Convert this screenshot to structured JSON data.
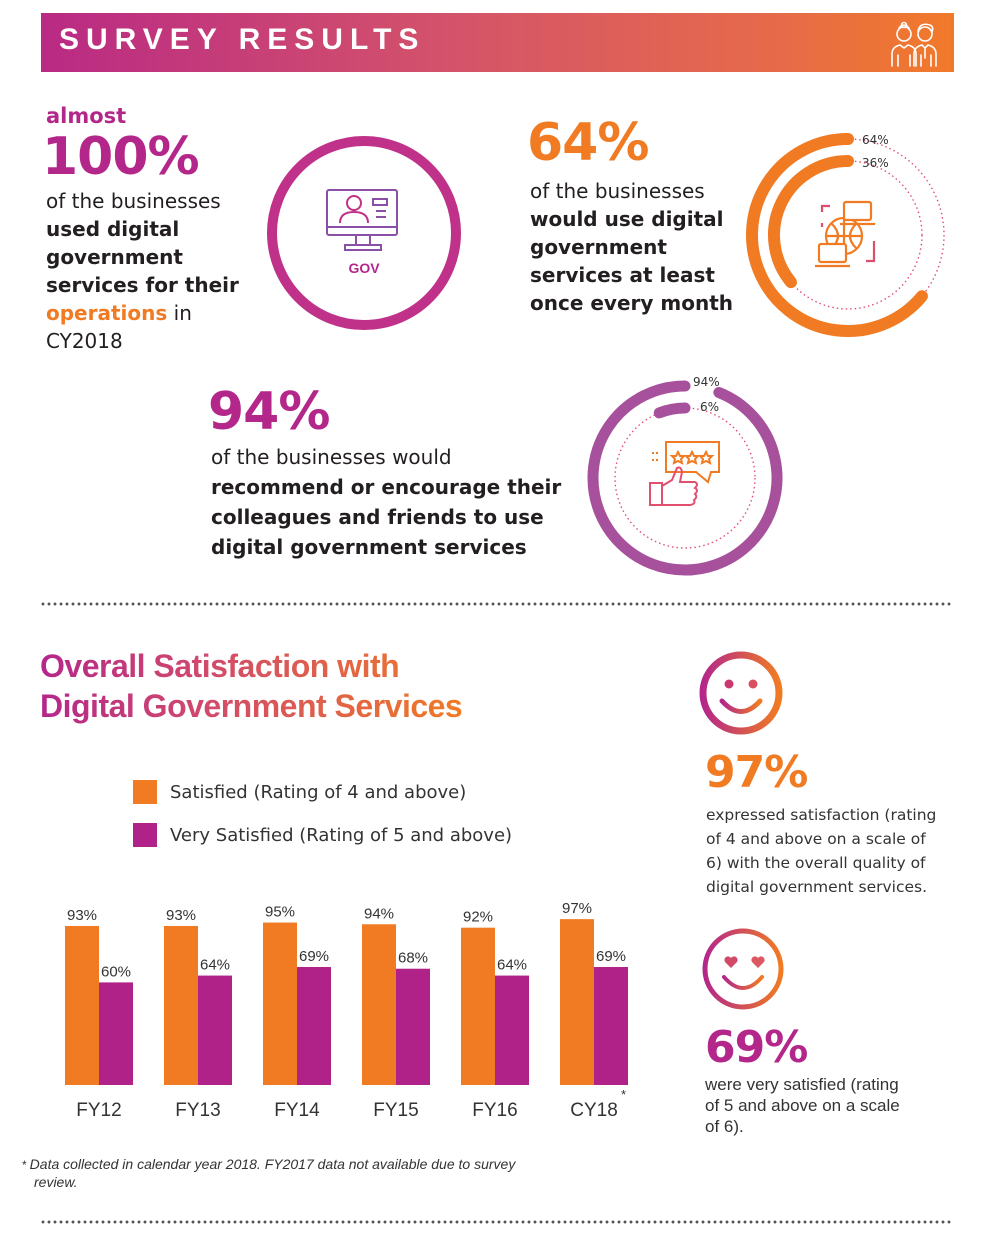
{
  "header": {
    "title": "SURVEY RESULTS",
    "icon": "people-icon"
  },
  "stat_usage": {
    "prefix": "almost",
    "value": "100%",
    "text_plain": "of the businesses",
    "text_highlight": [
      "used digital",
      "government",
      "services for their",
      "operations"
    ],
    "text_suffix": " in",
    "text_end": "CY2018",
    "icon": "computer-user-icon",
    "icon_label": "GOV"
  },
  "stat_monthly": {
    "value": "64%",
    "text_plain": "of the businesses",
    "text_highlight": [
      "would use digital",
      "government",
      "services at least",
      "once every month"
    ],
    "ring_labels": [
      "64%",
      "36%"
    ],
    "ring_values": [
      64,
      36
    ],
    "icon": "globe-laptops-icon"
  },
  "stat_recommend": {
    "value": "94%",
    "text_plain": "of the businesses would",
    "text_highlight": [
      "recommend or encourage their",
      "colleagues and friends to use",
      "digital government services"
    ],
    "ring_labels": [
      "94%",
      "6%"
    ],
    "ring_values": [
      94,
      6
    ],
    "icon": "thumbs-up-stars-icon"
  },
  "satisfaction": {
    "title_line1": "Overall Satisfaction with",
    "title_line2": "Digital Government Services"
  },
  "chart_data": {
    "type": "bar",
    "title": "Overall Satisfaction with Digital Government Services",
    "categories": [
      "FY12",
      "FY13",
      "FY14",
      "FY15",
      "FY16",
      "CY18"
    ],
    "category_marks": [
      "",
      "",
      "",
      "",
      "",
      "*"
    ],
    "series": [
      {
        "name": "Satisfied (Rating of 4 and above)",
        "color": "#f07b23",
        "values": [
          93,
          93,
          95,
          94,
          92,
          97
        ],
        "labels": [
          "93%",
          "93%",
          "95%",
          "94%",
          "92%",
          "97%"
        ]
      },
      {
        "name": "Very Satisfied (Rating of 5 and above)",
        "color": "#b02287",
        "values": [
          60,
          64,
          69,
          68,
          64,
          69
        ],
        "labels": [
          "60%",
          "64%",
          "69%",
          "68%",
          "64%",
          "69%"
        ]
      }
    ],
    "xlabel": "",
    "ylabel": "",
    "ylim": [
      0,
      100
    ],
    "grid": false,
    "legend": "top-left"
  },
  "highlight_satisfied": {
    "value": "97%",
    "text": [
      "expressed satisfaction (rating",
      "of 4 and above on a scale of",
      "6) with the overall quality of",
      "digital government services."
    ],
    "icon": "smiley-face-icon"
  },
  "highlight_very_satisfied": {
    "value": "69%",
    "text": [
      "were very satisfied (rating",
      "of 5 and above on a scale",
      "of 6)."
    ],
    "icon": "heart-eyes-face-icon"
  },
  "footnote": {
    "mark": "*",
    "text_line1": "Data collected in calendar year 2018. FY2017 data not available due to survey",
    "text_line2": "review."
  },
  "colors": {
    "purple": "#b4278a",
    "orange": "#f07b23",
    "violet": "#a7519c"
  }
}
